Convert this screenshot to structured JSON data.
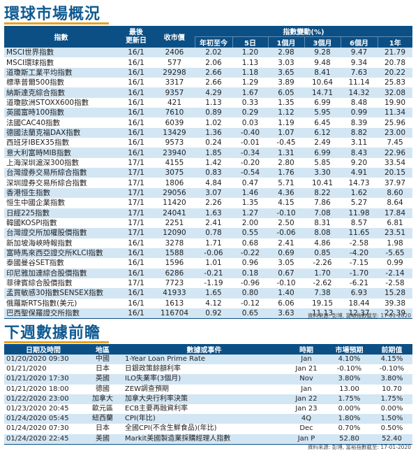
{
  "market": {
    "title": "環球市場概況",
    "headers": {
      "index": "指數",
      "last_update": "最後\n更新日",
      "close": "收市價",
      "change_group": "指數變動(%)",
      "ytd": "年初至今",
      "d5": "5日",
      "m1": "1個月",
      "m3": "3個月",
      "m6": "6個月",
      "y1": "1年"
    },
    "rows": [
      [
        "MSCI世界指數",
        "16/1",
        "2406",
        "2.02",
        "1.20",
        "2.98",
        "9.28",
        "9.47",
        "21.79"
      ],
      [
        "MSCI環球指數",
        "16/1",
        "577",
        "2.06",
        "1.13",
        "3.03",
        "9.48",
        "9.34",
        "20.78"
      ],
      [
        "道瓊斯工業平均指數",
        "16/1",
        "29298",
        "2.66",
        "1.18",
        "3.65",
        "8.41",
        "7.63",
        "20.22"
      ],
      [
        "標準普爾500指數",
        "16/1",
        "3317",
        "2.66",
        "1.29",
        "3.89",
        "10.64",
        "11.14",
        "25.83"
      ],
      [
        "納斯達克綜合指數",
        "16/1",
        "9357",
        "4.29",
        "1.67",
        "6.05",
        "14.71",
        "14.32",
        "32.08"
      ],
      [
        "道瓊歐洲STOXX600指數",
        "16/1",
        "421",
        "1.13",
        "0.33",
        "1.35",
        "6.99",
        "8.48",
        "19.90"
      ],
      [
        "英國富時100指數",
        "16/1",
        "7610",
        "0.89",
        "0.29",
        "1.12",
        "5.95",
        "0.99",
        "11.34"
      ],
      [
        "法國CAC40指數",
        "16/1",
        "6039",
        "1.02",
        "0.03",
        "1.19",
        "6.45",
        "8.39",
        "25.96"
      ],
      [
        "德國法蘭克福DAX指數",
        "16/1",
        "13429",
        "1.36",
        "-0.40",
        "1.07",
        "6.12",
        "8.82",
        "23.00"
      ],
      [
        "西班牙IBEX35指數",
        "16/1",
        "9573",
        "0.24",
        "-0.01",
        "-0.45",
        "2.49",
        "3.11",
        "7.45"
      ],
      [
        "意大利富時MIB指數",
        "16/1",
        "23940",
        "1.85",
        "-0.34",
        "1.31",
        "6.99",
        "8.43",
        "22.96"
      ],
      [
        "上海深圳滬深300指數",
        "17/1",
        "4155",
        "1.42",
        "-0.20",
        "2.80",
        "5.85",
        "9.20",
        "33.54"
      ],
      [
        "台灣證券交易所綜合指數",
        "17/1",
        "3075",
        "0.83",
        "-0.54",
        "1.76",
        "3.30",
        "4.91",
        "20.15"
      ],
      [
        "深圳證券交易所綜合指數",
        "17/1",
        "1806",
        "4.84",
        "0.47",
        "5.71",
        "10.41",
        "14.73",
        "37.97"
      ],
      [
        "香港恒生指數",
        "17/1",
        "29056",
        "3.07",
        "1.46",
        "4.36",
        "8.22",
        "1.62",
        "8.60"
      ],
      [
        "恒生中國企業指數",
        "17/1",
        "11420",
        "2.26",
        "1.35",
        "4.15",
        "7.86",
        "5.27",
        "8.64"
      ],
      [
        "日經225指數",
        "17/1",
        "24041",
        "1.63",
        "1.27",
        "-0.10",
        "7.08",
        "11.98",
        "17.84"
      ],
      [
        "韓國KOSPI指數",
        "17/1",
        "2251",
        "2.41",
        "2.00",
        "2.50",
        "8.31",
        "8.57",
        "6.81"
      ],
      [
        "台灣證交所加權股價指數",
        "17/1",
        "12090",
        "0.78",
        "0.55",
        "-0.06",
        "8.08",
        "11.65",
        "23.51"
      ],
      [
        "新加坡海峽時報指數",
        "16/1",
        "3278",
        "1.71",
        "0.68",
        "2.41",
        "4.86",
        "-2.58",
        "1.98"
      ],
      [
        "富時馬來西亞證交所KLCI指數",
        "16/1",
        "1588",
        "-0.06",
        "-0.22",
        "0.69",
        "0.85",
        "-4.20",
        "-5.65"
      ],
      [
        "泰國曼谷SET指數",
        "16/1",
        "1596",
        "1.01",
        "0.96",
        "3.05",
        "-2.26",
        "-7.15",
        "0.99"
      ],
      [
        "印尼雅加達綜合股價指數",
        "16/1",
        "6286",
        "-0.21",
        "0.18",
        "0.67",
        "1.70",
        "-1.70",
        "-2.14"
      ],
      [
        "菲律賓綜合股價指數",
        "17/1",
        "7723",
        "-1.19",
        "-0.96",
        "-0.10",
        "-2.62",
        "-6.21",
        "-2.58"
      ],
      [
        "孟買敏感30指數SENSEX指數",
        "16/1",
        "41933",
        "1.65",
        "0.80",
        "1.40",
        "7.38",
        "6.93",
        "15.28"
      ],
      [
        "俄羅斯RTS指數(美元)",
        "16/1",
        "1613",
        "4.12",
        "-0.12",
        "6.06",
        "19.15",
        "18.44",
        "39.38"
      ],
      [
        "巴西聖保羅證交所指數",
        "16/1",
        "116704",
        "0.92",
        "0.65",
        "3.63",
        "11.13",
        "12.37",
        "22.39"
      ]
    ],
    "source": "資料來源: 彭博, 富裕指數截至: 17-01-2020"
  },
  "events": {
    "title": "下週數據前瞻",
    "headers": {
      "datetime": "日期及時間",
      "region": "地區",
      "event": "數據或事件",
      "period": "時期",
      "forecast": "市場預期",
      "previous": "前期值"
    },
    "rows": [
      [
        "01/20/2020 09:30",
        "中國",
        "1-Year Loan Prime Rate",
        "Jan",
        "4.10%",
        "4.15%"
      ],
      [
        "01/21/2020",
        "日本",
        "日銀政策餘額利率",
        "Jan 21",
        "-0.10%",
        "-0.10%"
      ],
      [
        "01/21/2020 17:30",
        "英國",
        "ILO失業率(3個月)",
        "Nov",
        "3.80%",
        "3.80%"
      ],
      [
        "01/21/2020 18:00",
        "德國",
        "ZEW調查預期",
        "Jan",
        "13.00",
        "10.70"
      ],
      [
        "01/22/2020 23:00",
        "加拿大",
        "加拿大央行利率決策",
        "Jan 22",
        "1.75%",
        "1.75%"
      ],
      [
        "01/23/2020 20:45",
        "歐元區",
        "ECB主要再融資利率",
        "Jan 23",
        "0.00%",
        "0.00%"
      ],
      [
        "01/24/2020 05:45",
        "紐西蘭",
        "CPI(年比)",
        "4Q",
        "1.80%",
        "1.50%"
      ],
      [
        "01/24/2020 07:30",
        "日本",
        "全國CPI(不含生鮮食品)(年比)",
        "Dec",
        "0.70%",
        "0.50%"
      ],
      [
        "01/24/2020 22:45",
        "美國",
        "Markit美國製造業採購經理人指數",
        "Jan P",
        "52.80",
        "52.40"
      ]
    ],
    "source": "資料來源: 彭博, 富裕指數截至: 17-01-2020"
  }
}
